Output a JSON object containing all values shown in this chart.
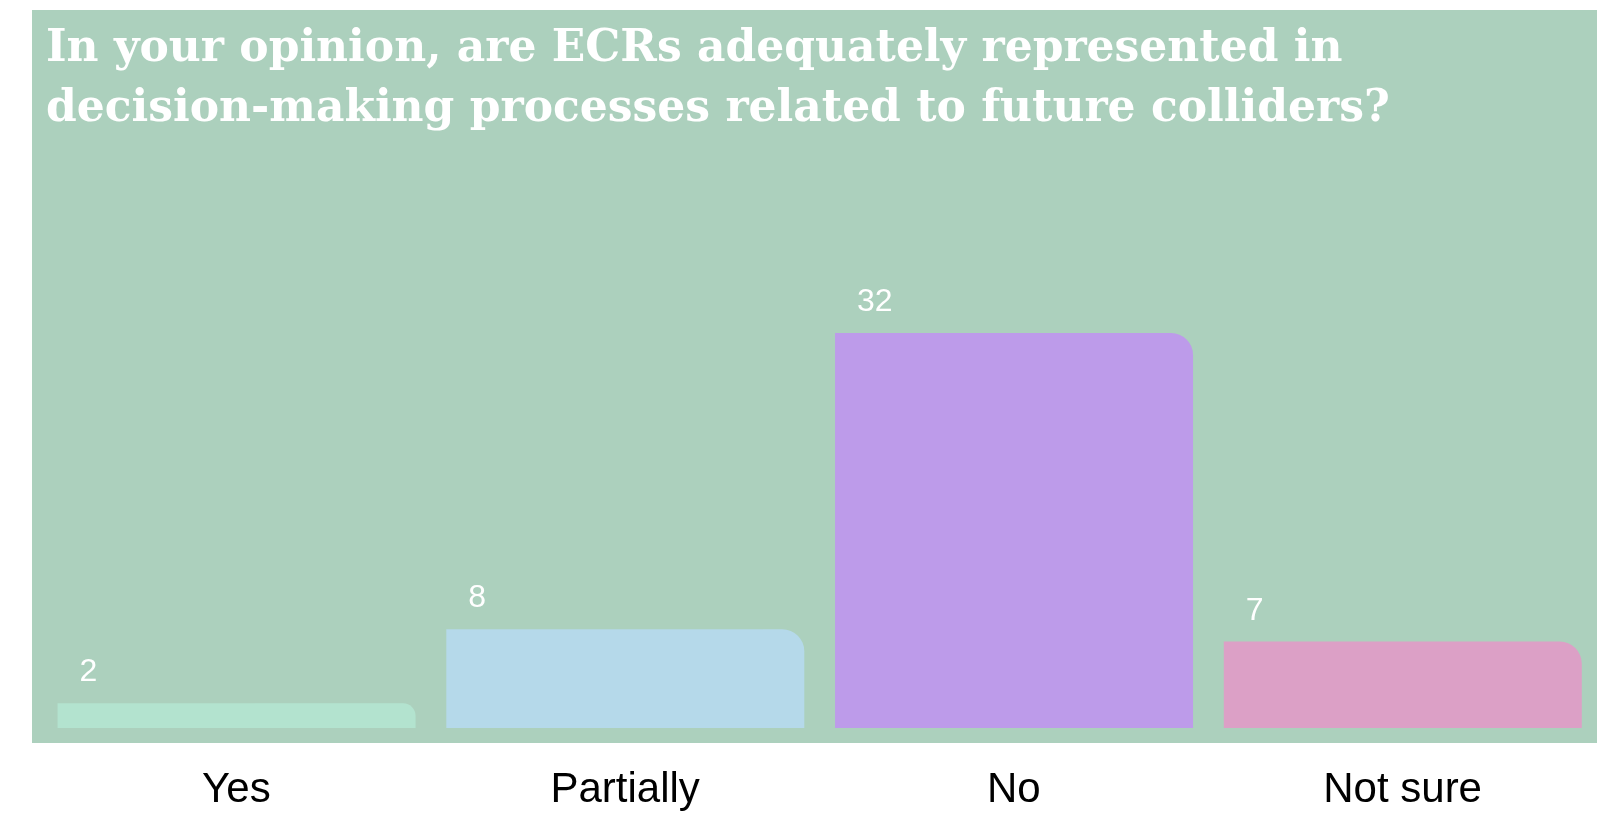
{
  "chart_data": {
    "type": "bar",
    "title": "In your opinion, are ECRs adequately represented in decision-making processes related to future colliders?",
    "categories": [
      "Yes",
      "Partially",
      "No",
      "Not sure"
    ],
    "values": [
      2,
      8,
      32,
      7
    ],
    "colors": [
      "#b3e3cf",
      "#b5d9ea",
      "#bd9bea",
      "#dca0c6"
    ],
    "data_labels": true,
    "grid": false,
    "legend": false
  }
}
